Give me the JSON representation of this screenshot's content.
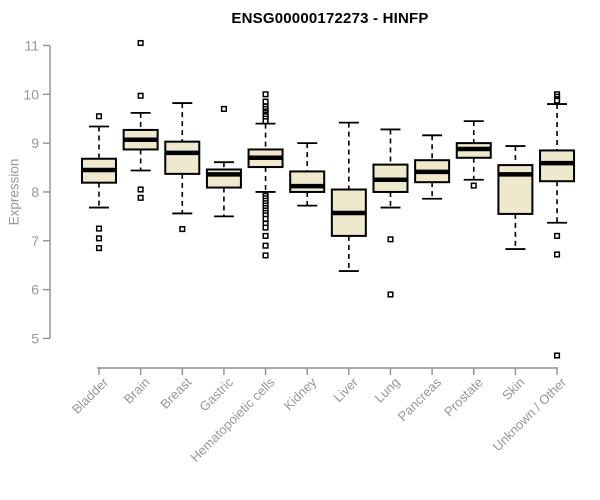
{
  "title": "ENSG00000172273 - HINFP",
  "ylabel": "Expression",
  "colors": {
    "box_fill": "#EEE8CD",
    "box_stroke": "#000000",
    "median": "#000000",
    "whisker": "#000000",
    "outlier_stroke": "#000000",
    "outlier_fill": "#ffffff",
    "axis": "#909090",
    "axis_text": "#979797",
    "title_text": "#000000",
    "background": "#ffffff"
  },
  "chart_data": {
    "type": "boxplot",
    "title": "ENSG00000172273 - HINFP",
    "xlabel": "",
    "ylabel": "Expression",
    "ylim": [
      5,
      11
    ],
    "yticks": [
      5,
      6,
      7,
      8,
      9,
      10,
      11
    ],
    "grid": false,
    "legend": "none",
    "categories": [
      "Bladder",
      "Brain",
      "Breast",
      "Gastric",
      "Hematopoietic cells",
      "Kidney",
      "Liver",
      "Lung",
      "Pancreas",
      "Prostate",
      "Skin",
      "Unknown / Other"
    ],
    "boxes": [
      {
        "category": "Bladder",
        "whisker_low": 7.68,
        "q1": 8.19,
        "median": 8.45,
        "q3": 8.68,
        "whisker_high": 9.34,
        "outliers": [
          9.55,
          7.25,
          7.05,
          6.85
        ]
      },
      {
        "category": "Brain",
        "whisker_low": 8.44,
        "q1": 8.87,
        "median": 9.07,
        "q3": 9.27,
        "whisker_high": 9.62,
        "outliers": [
          11.05,
          9.97,
          8.05,
          7.88
        ]
      },
      {
        "category": "Breast",
        "whisker_low": 7.56,
        "q1": 8.37,
        "median": 8.8,
        "q3": 9.03,
        "whisker_high": 9.82,
        "outliers": [
          7.24
        ]
      },
      {
        "category": "Gastric",
        "whisker_low": 7.5,
        "q1": 8.09,
        "median": 8.36,
        "q3": 8.46,
        "whisker_high": 8.61,
        "outliers": [
          9.7
        ]
      },
      {
        "category": "Hematopoietic cells",
        "whisker_low": 8.0,
        "q1": 8.51,
        "median": 8.7,
        "q3": 8.87,
        "whisker_high": 9.4,
        "outliers": [
          10.0,
          9.85,
          9.75,
          9.7,
          9.65,
          9.62,
          9.58,
          9.55,
          9.5,
          9.45,
          7.92,
          7.87,
          7.82,
          7.77,
          7.72,
          7.67,
          7.62,
          7.57,
          7.52,
          7.45,
          7.35,
          7.27,
          7.1,
          6.9,
          6.7
        ]
      },
      {
        "category": "Kidney",
        "whisker_low": 7.72,
        "q1": 8.0,
        "median": 8.12,
        "q3": 8.42,
        "whisker_high": 9.0,
        "outliers": []
      },
      {
        "category": "Liver",
        "whisker_low": 6.38,
        "q1": 7.1,
        "median": 7.57,
        "q3": 8.05,
        "whisker_high": 9.42,
        "outliers": []
      },
      {
        "category": "Lung",
        "whisker_low": 7.68,
        "q1": 8.0,
        "median": 8.25,
        "q3": 8.56,
        "whisker_high": 9.28,
        "outliers": [
          7.03,
          5.9
        ]
      },
      {
        "category": "Pancreas",
        "whisker_low": 7.86,
        "q1": 8.2,
        "median": 8.41,
        "q3": 8.65,
        "whisker_high": 9.16,
        "outliers": []
      },
      {
        "category": "Prostate",
        "whisker_low": 8.25,
        "q1": 8.7,
        "median": 8.88,
        "q3": 9.0,
        "whisker_high": 9.45,
        "outliers": [
          8.13
        ]
      },
      {
        "category": "Skin",
        "whisker_low": 6.83,
        "q1": 7.55,
        "median": 8.36,
        "q3": 8.55,
        "whisker_high": 8.94,
        "outliers": []
      },
      {
        "category": "Unknown / Other",
        "whisker_low": 7.37,
        "q1": 8.22,
        "median": 8.59,
        "q3": 8.85,
        "whisker_high": 9.8,
        "outliers": [
          10.0,
          9.95,
          9.9,
          9.87,
          7.1,
          6.72,
          4.65
        ]
      }
    ]
  }
}
